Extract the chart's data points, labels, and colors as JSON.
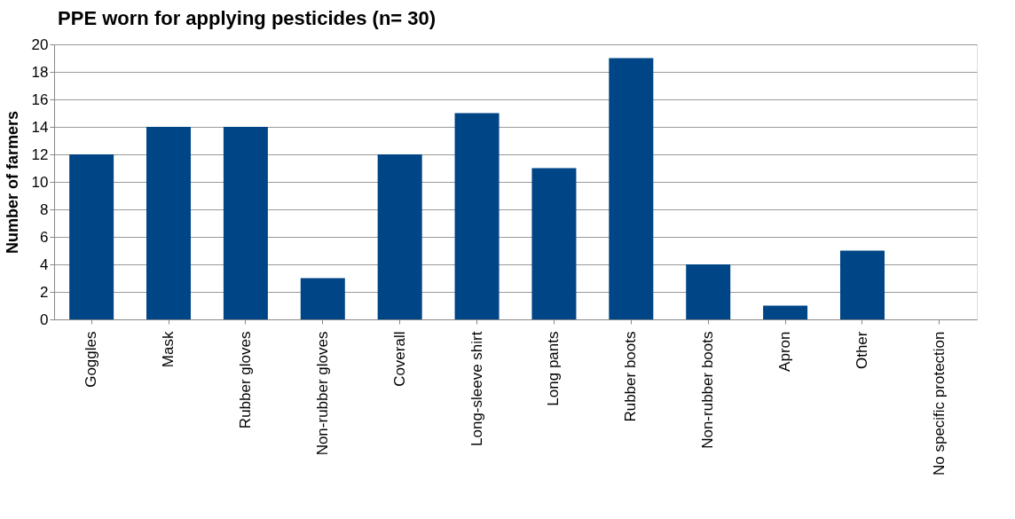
{
  "chart_data": {
    "type": "bar",
    "title": "PPE worn for applying pesticides (n= 30)",
    "ylabel": "Number of farmers",
    "categories": [
      "Goggles",
      "Mask",
      "Rubber gloves",
      "Non-rubber gloves",
      "Coverall",
      "Long-sleeve shirt",
      "Long pants",
      "Rubber boots",
      "Non-rubber boots",
      "Apron",
      "Other",
      "No specific protection"
    ],
    "values": [
      12,
      14,
      14,
      3,
      12,
      15,
      11,
      19,
      4,
      1,
      5,
      0
    ],
    "color": "#004586",
    "ylim": [
      0,
      20
    ],
    "yticks": [
      0,
      2,
      4,
      6,
      8,
      10,
      12,
      14,
      16,
      18,
      20
    ],
    "grid": "y"
  }
}
